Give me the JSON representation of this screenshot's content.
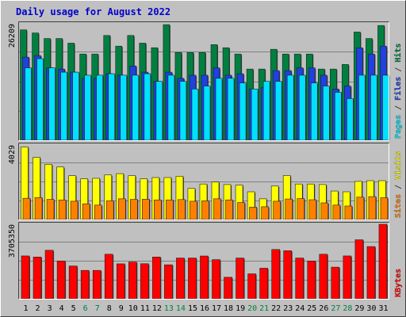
{
  "title": "Daily usage for August 2022",
  "chart_data": {
    "type": "bar",
    "categories": [
      "1",
      "2",
      "3",
      "4",
      "5",
      "6",
      "7",
      "8",
      "9",
      "10",
      "11",
      "12",
      "13",
      "14",
      "15",
      "16",
      "17",
      "18",
      "19",
      "20",
      "21",
      "22",
      "23",
      "24",
      "25",
      "26",
      "27",
      "28",
      "29",
      "30",
      "31"
    ],
    "weekend_days": [
      "6",
      "7",
      "13",
      "14",
      "20",
      "21",
      "27",
      "28"
    ],
    "panels": [
      {
        "name": "hits-files-pages",
        "ymax": 26209,
        "ymax_label": "26209",
        "right_labels": [
          "Pages",
          "Files",
          "Hits"
        ],
        "series": [
          {
            "name": "Hits",
            "color": "#008040",
            "values": [
              24840,
              24140,
              22890,
              22890,
              21850,
              19400,
              19400,
              23580,
              21180,
              23580,
              21850,
              20820,
              26010,
              19750,
              19750,
              19750,
              21520,
              20820,
              19400,
              16020,
              16020,
              20470,
              19400,
              19400,
              19400,
              16020,
              16020,
              17060,
              24350,
              22890,
              25820
            ]
          },
          {
            "name": "Files",
            "color": "#2040e0",
            "values": [
              18700,
              19050,
              16300,
              16020,
              15320,
              13940,
              13940,
              14970,
              14640,
              16720,
              15320,
              13260,
              15320,
              13940,
              14640,
              14640,
              16300,
              14640,
              14970,
              11540,
              11880,
              15670,
              15670,
              16300,
              16300,
              14640,
              11540,
              12200,
              20810,
              19400,
              21180
            ]
          },
          {
            "name": "Pages",
            "color": "#00e0ff",
            "values": [
              16300,
              18360,
              16300,
              15320,
              15320,
              14640,
              14640,
              14970,
              14640,
              14640,
              14970,
              13260,
              14640,
              13260,
              11540,
              12200,
              13940,
              13940,
              12890,
              11540,
              13260,
              13260,
              14640,
              14640,
              12890,
              12200,
              10800,
              9380,
              14640,
              14640,
              14640
            ]
          }
        ]
      },
      {
        "name": "visits-sites",
        "ymax": 4029,
        "ymax_label": "4029",
        "right_labels": [
          "Sites",
          "Visits"
        ],
        "series": [
          {
            "name": "Visits",
            "color": "#ffff00",
            "values": [
              3920,
              3360,
              2980,
              2840,
              2370,
              2200,
              2230,
              2410,
              2480,
              2370,
              2200,
              2270,
              2270,
              2340,
              1680,
              1920,
              2030,
              1890,
              1860,
              1500,
              1120,
              1810,
              2380,
              1920,
              1920,
              1890,
              1540,
              1500,
              2060,
              2100,
              2100
            ]
          },
          {
            "name": "Sites",
            "color": "#ff8000",
            "values": [
              1150,
              1190,
              1090,
              1060,
              990,
              850,
              780,
              1010,
              1120,
              1090,
              1100,
              1060,
              1060,
              1080,
              990,
              1010,
              1120,
              1060,
              920,
              670,
              690,
              990,
              1110,
              1130,
              1070,
              900,
              780,
              730,
              1210,
              1240,
              1180
            ]
          }
        ]
      },
      {
        "name": "kbytes",
        "ymax": 3705350,
        "ymax_label": "3705350",
        "right_labels": [
          "KBytes"
        ],
        "series": [
          {
            "name": "KBytes",
            "color": "#ff0000",
            "values": [
              2131000,
              2077000,
              2412000,
              1881000,
              1630000,
              1411000,
              1411000,
              2216000,
              1738000,
              1828000,
              1743000,
              2077000,
              1690000,
              2027000,
              2027000,
              2127000,
              1947000,
              1070000,
              2027000,
              1240000,
              1520000,
              2452000,
              2389000,
              2027000,
              1881000,
              2216000,
              1573000,
              2131000,
              2934000,
              2598000,
              3705350
            ]
          }
        ]
      }
    ]
  }
}
